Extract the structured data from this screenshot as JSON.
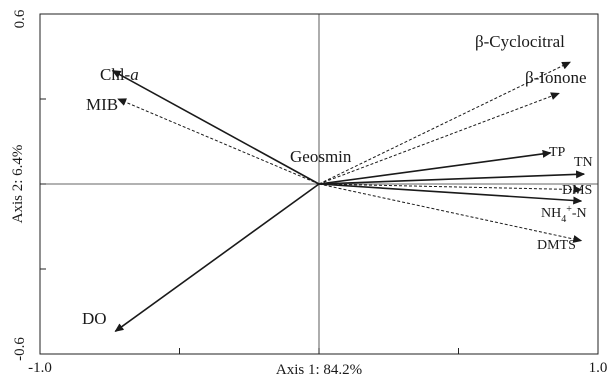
{
  "chart_data": {
    "type": "biplot",
    "xlabel": "Axis 1: 84.2%",
    "ylabel": "Axis 2: 6.4%",
    "xlim": [
      -1.0,
      1.0
    ],
    "ylim": [
      -0.6,
      0.6
    ],
    "x_tick_labels": [
      "-1.0",
      "1.0"
    ],
    "y_tick_labels": [
      "0.6",
      "-0.6"
    ],
    "grid": false,
    "zero_lines": true,
    "response_variables": {
      "line_style": "dashed",
      "vectors": [
        {
          "name": "β-Cyclocitral",
          "x": 0.9,
          "y": 0.43
        },
        {
          "name": "β-Ionone",
          "x": 0.86,
          "y": 0.32
        },
        {
          "name": "MIB",
          "x": -0.72,
          "y": 0.3
        },
        {
          "name": "Geosmin",
          "x": 0.0,
          "y": 0.0
        },
        {
          "name": "DMS",
          "x": 0.94,
          "y": -0.02
        },
        {
          "name": "DMTS",
          "x": 0.94,
          "y": -0.2
        }
      ]
    },
    "explanatory_variables": {
      "line_style": "solid",
      "vectors": [
        {
          "name": "Chl-a",
          "x": -0.74,
          "y": 0.4
        },
        {
          "name": "DO",
          "x": -0.73,
          "y": -0.52
        },
        {
          "name": "TP",
          "x": 0.83,
          "y": 0.11
        },
        {
          "name": "TN",
          "x": 0.95,
          "y": 0.035
        },
        {
          "name": "NH4+-N",
          "x": 0.94,
          "y": -0.06
        }
      ]
    }
  }
}
